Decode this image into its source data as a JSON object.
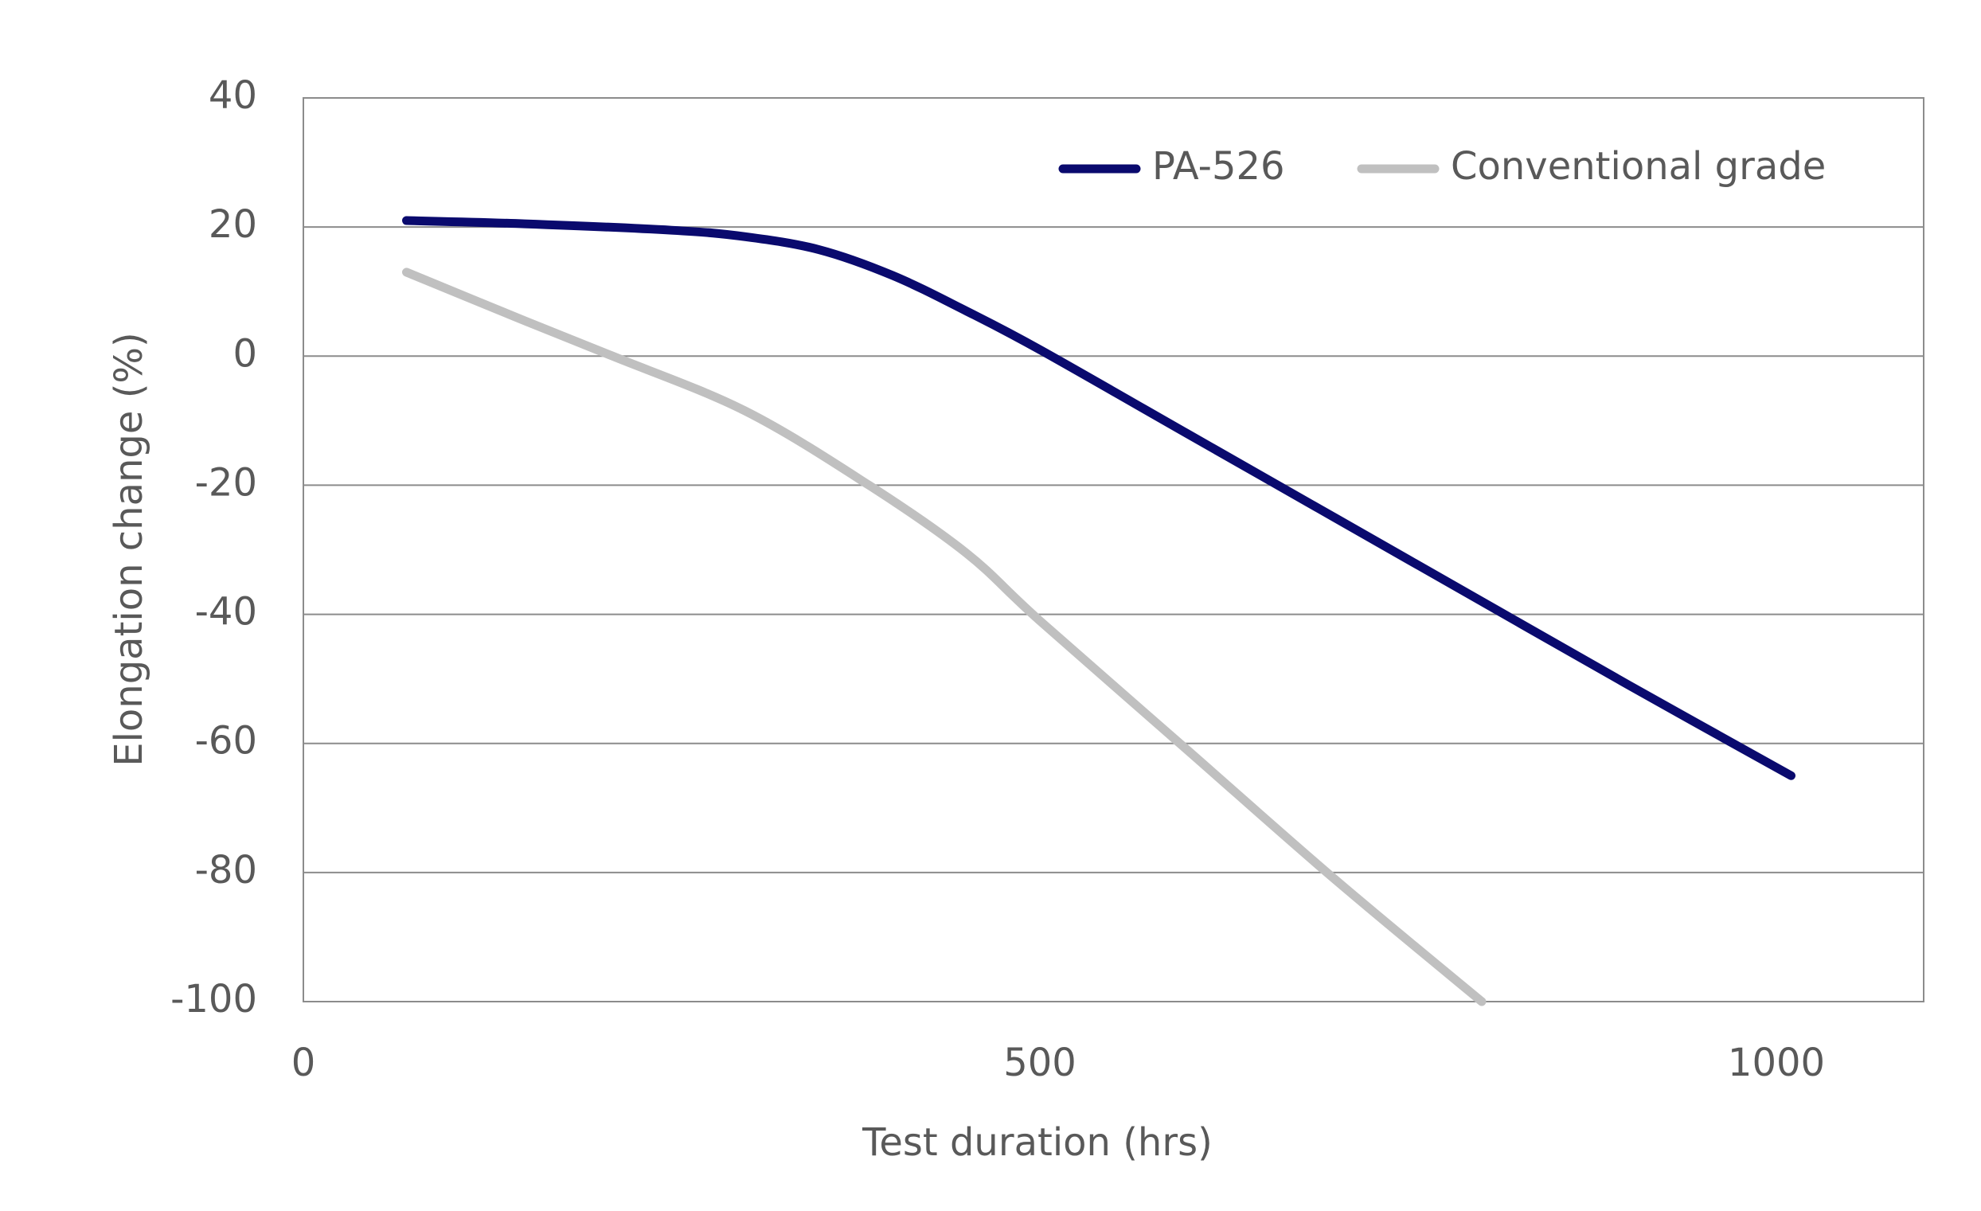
{
  "chart_data": {
    "type": "line",
    "x_label": "Test duration (hrs)",
    "y_label": "Elongation change (%)",
    "xlim": [
      0,
      1100
    ],
    "xticks": [
      0,
      500,
      1000
    ],
    "ylim": [
      -100,
      40
    ],
    "yticks": [
      -100,
      -80,
      -60,
      -40,
      -20,
      0,
      20,
      40
    ],
    "grid": true,
    "legend": "top-right",
    "series": [
      {
        "name": "PA-526",
        "color": "#0a0a6e",
        "x": [
          70,
          150,
          250,
          300,
          350,
          400,
          450,
          500,
          600,
          700,
          800,
          900,
          1010
        ],
        "values": [
          21,
          20.5,
          19.5,
          18.5,
          16.5,
          12.5,
          7,
          1,
          -12,
          -25,
          -38,
          -51,
          -65
        ]
      },
      {
        "name": "Conventional grade",
        "color": "#c0c0c0",
        "x": [
          70,
          150,
          210,
          300,
          384,
          450,
          500,
          600,
          700,
          800
        ],
        "values": [
          13,
          5.5,
          0,
          -8.5,
          -20,
          -30.5,
          -41,
          -61,
          -81,
          -100
        ]
      }
    ]
  }
}
